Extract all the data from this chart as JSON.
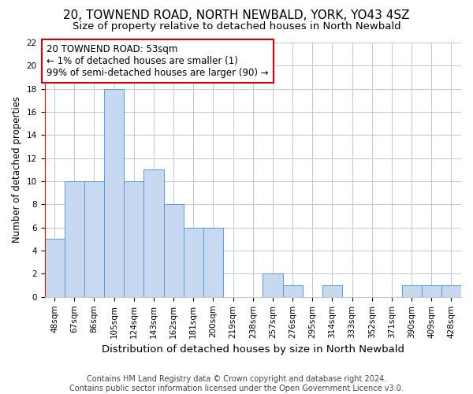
{
  "title": "20, TOWNEND ROAD, NORTH NEWBALD, YORK, YO43 4SZ",
  "subtitle": "Size of property relative to detached houses in North Newbald",
  "xlabel": "Distribution of detached houses by size in North Newbald",
  "ylabel": "Number of detached properties",
  "categories": [
    "48sqm",
    "67sqm",
    "86sqm",
    "105sqm",
    "124sqm",
    "143sqm",
    "162sqm",
    "181sqm",
    "200sqm",
    "219sqm",
    "238sqm",
    "257sqm",
    "276sqm",
    "295sqm",
    "314sqm",
    "333sqm",
    "352sqm",
    "371sqm",
    "390sqm",
    "409sqm",
    "428sqm"
  ],
  "values": [
    5,
    10,
    10,
    18,
    10,
    11,
    8,
    6,
    6,
    0,
    0,
    2,
    1,
    0,
    1,
    0,
    0,
    0,
    1,
    1,
    1
  ],
  "bar_color": "#c6d9f0",
  "bar_edge_color": "#5b9bd5",
  "highlight_color": "#ff0000",
  "annotation_text": "20 TOWNEND ROAD: 53sqm\n← 1% of detached houses are smaller (1)\n99% of semi-detached houses are larger (90) →",
  "annotation_box_color": "#ffffff",
  "annotation_box_edge_color": "#cc0000",
  "ylim": [
    0,
    22
  ],
  "yticks": [
    0,
    2,
    4,
    6,
    8,
    10,
    12,
    14,
    16,
    18,
    20,
    22
  ],
  "footer": "Contains HM Land Registry data © Crown copyright and database right 2024.\nContains public sector information licensed under the Open Government Licence v3.0.",
  "bg_color": "#ffffff",
  "grid_color": "#c0c8d8",
  "title_fontsize": 11,
  "subtitle_fontsize": 9.5,
  "xlabel_fontsize": 9.5,
  "ylabel_fontsize": 8.5,
  "tick_fontsize": 7.5,
  "annotation_fontsize": 8.5,
  "footer_fontsize": 7
}
